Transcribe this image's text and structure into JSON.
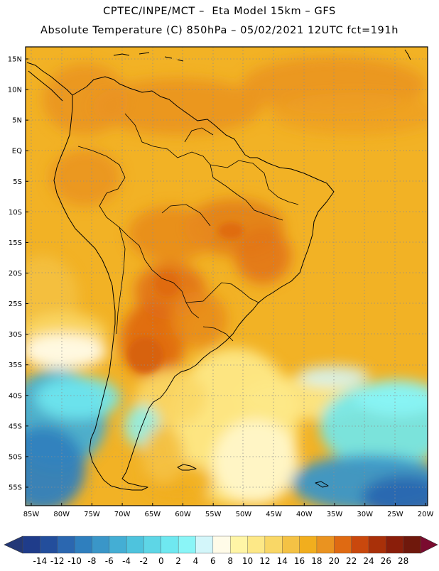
{
  "header": {
    "line1": "CPTEC/INPE/MCT –  Eta Model 15km – GFS",
    "line2": "Absolute Temperature (C) 850hPa – 05/02/2021 12UTC fct=191h"
  },
  "map": {
    "lat_ticks": [
      "15N",
      "10N",
      "5N",
      "EQ",
      "5S",
      "10S",
      "15S",
      "20S",
      "25S",
      "30S",
      "35S",
      "40S",
      "45S",
      "50S",
      "55S"
    ],
    "lon_ticks": [
      "85W",
      "80W",
      "75W",
      "70W",
      "65W",
      "60W",
      "55W",
      "50W",
      "45W",
      "40W",
      "35W",
      "30W",
      "25W",
      "20W"
    ]
  },
  "colorbar": {
    "labels": [
      "-14",
      "-12",
      "-10",
      "-8",
      "-6",
      "-4",
      "-2",
      "0",
      "2",
      "4",
      "6",
      "8",
      "10",
      "12",
      "14",
      "16",
      "18",
      "20",
      "22",
      "24",
      "26",
      "28"
    ],
    "colors": [
      "#1f3c8a",
      "#234e9c",
      "#2b67b0",
      "#2f7fbe",
      "#3a96c8",
      "#44aed4",
      "#4ec3dd",
      "#5ed6e6",
      "#6fe8f0",
      "#8af5f7",
      "#d3f6fa",
      "#fffbe8",
      "#fff5a6",
      "#fde887",
      "#f9d766",
      "#f4c245",
      "#f1ae1e",
      "#ea9320",
      "#df6a12",
      "#c9480d",
      "#a93009",
      "#8a1e0a",
      "#6f180c"
    ],
    "under_color": "#233877",
    "over_color": "#7a0b2f"
  }
}
